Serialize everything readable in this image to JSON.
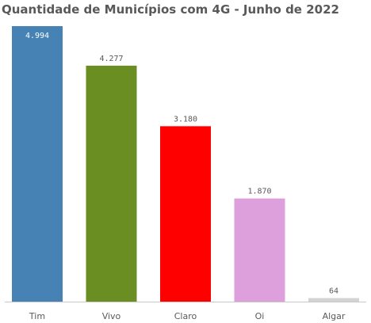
{
  "chart_data": {
    "type": "bar",
    "title": "Quantidade de Municípios com 4G - Junho de 2022",
    "categories": [
      "Tim",
      "Vivo",
      "Claro",
      "Oi",
      "Algar"
    ],
    "values": [
      4994,
      4277,
      3180,
      1870,
      64
    ],
    "value_labels": [
      "4.994",
      "4.277",
      "3.180",
      "1.870",
      "64"
    ],
    "colors": [
      "#4682B4",
      "#6B8E23",
      "#FF0000",
      "#DDA0DD",
      "#D3D3D3"
    ],
    "ylim": [
      0,
      4994
    ],
    "xlabel": "",
    "ylabel": "",
    "grid": false,
    "legend": "none"
  }
}
